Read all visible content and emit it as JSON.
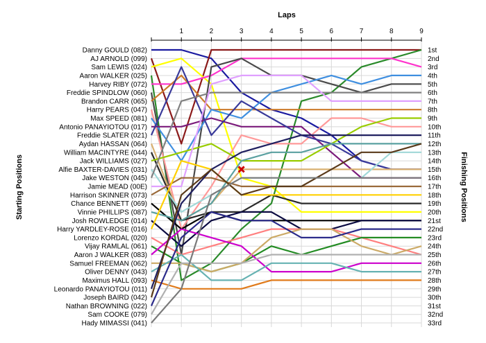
{
  "chart_data": {
    "type": "line",
    "title": "",
    "xlabel": "Laps",
    "ylabel_left": "Starting Positions",
    "ylabel_right": "Finishing Positions",
    "x": [
      0,
      1,
      2,
      3,
      4,
      5,
      6,
      7,
      8,
      9
    ],
    "x_tick_labels": [
      "1",
      "2",
      "3",
      "4",
      "5",
      "6",
      "7",
      "8",
      "9"
    ],
    "ylim": [
      1,
      33
    ],
    "grid": true,
    "starting_labels": [
      "Danny GOULD (082)",
      "AJ ARNOLD (099)",
      "Sam LEWIS (024)",
      "Aaron WALKER (025)",
      "Harvey RIBY (072)",
      "Freddie SPINDLOW (060)",
      "Brandon CARR (065)",
      "Harry PEARS (047)",
      "Max SPEED (081)",
      "Antonio PANAYIOTOU (017)",
      "Freddie SLATER (021)",
      "Aydan HASSAN (064)",
      "William MACINTYRE (044)",
      "Jack WILLIAMS (027)",
      "Alfie BAXTER-DAVIES (031)",
      "Jake WESTON (045)",
      "Jamie MEAD (00E)",
      "Harrison SKINNER (073)",
      "Chance BENNETT (069)",
      "Vinnie PHILLIPS (087)",
      "Josh ROWLEDGE (014)",
      "Harry YARDLEY-ROSE (016)",
      "Lorenzo KORDAL (020)",
      "Vijay RAMLAL (061)",
      "Aaron J WALKER (083)",
      "Samuel FREEMAN (062)",
      "Oliver DENNY (043)",
      "Maximus HALL (093)",
      "Leonardo PANAYIOTOU (011)",
      "Joseph BAIRD (042)",
      "Nathan BROWNING (022)",
      "Sam COOKE (079)",
      "Hady MIMASSI (041)"
    ],
    "finishing_labels": [
      "1st",
      "2nd",
      "3rd",
      "4th",
      "5th",
      "6th",
      "7th",
      "8th",
      "9th",
      "10th",
      "11th",
      "12th",
      "13th",
      "14th",
      "15th",
      "16th",
      "17th",
      "18th",
      "19th",
      "20th",
      "21st",
      "22nd",
      "23rd",
      "24th",
      "25th",
      "26th",
      "27th",
      "28th",
      "29th",
      "30th",
      "31st",
      "32nd",
      "33rd"
    ],
    "series": [
      {
        "color": "#1a1aa0",
        "values": [
          1,
          1,
          2,
          6,
          8,
          9,
          11,
          14,
          15,
          15
        ]
      },
      {
        "color": "#8b1a1a",
        "values": [
          2,
          12,
          1,
          1,
          1,
          1,
          1,
          1,
          1,
          1
        ]
      },
      {
        "color": "#ffff00",
        "values": [
          3,
          2,
          5,
          16,
          17,
          20,
          20,
          20,
          20,
          20
        ]
      },
      {
        "color": "#2a8a2a",
        "values": [
          4,
          28,
          26,
          22,
          19,
          7,
          6,
          3,
          2,
          1
        ]
      },
      {
        "color": "#ff33cc",
        "values": [
          5,
          5,
          4,
          2,
          2,
          2,
          2,
          2,
          2,
          3
        ]
      },
      {
        "color": "#4a4a4a",
        "values": [
          6,
          25,
          3,
          2,
          4,
          4,
          5,
          6,
          5,
          5
        ]
      },
      {
        "color": "#cc7a2a",
        "values": [
          7,
          4,
          8,
          8,
          8,
          8,
          8,
          8,
          8,
          8
        ]
      },
      {
        "color": "#ff9999",
        "values": [
          8,
          22,
          17,
          11,
          12,
          12,
          9,
          9,
          10,
          10
        ]
      },
      {
        "color": "#3f8fe0",
        "values": [
          9,
          14,
          8,
          9,
          6,
          5,
          4,
          5,
          4,
          4
        ]
      },
      {
        "color": "#7a1a7a",
        "values": [
          10,
          10,
          9,
          10,
          10,
          10,
          13,
          16,
          16,
          16
        ]
      },
      {
        "color": "#3a3a9a",
        "values": [
          11,
          3,
          11,
          7,
          9,
          11,
          12,
          14,
          15,
          15
        ]
      },
      {
        "color": "#d9b070",
        "values": [
          12,
          21,
          19,
          15,
          15,
          15,
          15,
          15,
          15,
          15
        ]
      },
      {
        "color": "#2a2a2a",
        "values": [
          13,
          21,
          20,
          20,
          18,
          19,
          19,
          19,
          19,
          19
        ]
      },
      {
        "color": "#99cc00",
        "values": [
          14,
          13,
          12,
          14,
          14,
          14,
          12,
          10,
          9,
          9
        ]
      },
      {
        "color": "#a0d8d8",
        "values": [
          15,
          20,
          18,
          16,
          16,
          16,
          16,
          16,
          13,
          13
        ]
      },
      {
        "color": "#808080",
        "values": [
          16,
          7,
          6,
          6,
          6,
          6,
          6,
          6,
          6,
          6
        ]
      },
      {
        "color": "#e0a0ff",
        "values": [
          17,
          17,
          5,
          4,
          4,
          4,
          7,
          7,
          7,
          7
        ]
      },
      {
        "color": "#9a6a3a",
        "values": [
          18,
          16,
          16,
          17,
          17,
          17,
          17,
          17,
          17,
          17
        ]
      },
      {
        "color": "#000000",
        "values": [
          19,
          22,
          20,
          21,
          21,
          21,
          21,
          21,
          21,
          21
        ]
      },
      {
        "color": "#5aa0a0",
        "values": [
          20,
          21,
          19,
          14,
          13,
          13,
          12,
          12,
          12,
          12
        ]
      },
      {
        "color": "#0a0a40",
        "values": [
          21,
          24,
          21,
          20,
          20,
          22,
          22,
          21,
          21,
          21
        ]
      },
      {
        "color": "#ffd000",
        "values": [
          22,
          14,
          15,
          18,
          18,
          18,
          18,
          18,
          18,
          18
        ]
      },
      {
        "color": "#ff7f7f",
        "values": [
          23,
          25,
          24,
          23,
          22,
          22,
          22,
          23,
          24,
          25
        ]
      },
      {
        "color": "#228b22",
        "values": [
          24,
          26,
          27,
          26,
          24,
          25,
          24,
          23,
          23,
          23
        ]
      },
      {
        "color": "#cc00cc",
        "values": [
          25,
          22,
          23,
          24,
          27,
          27,
          27,
          26,
          26,
          26
        ]
      },
      {
        "color": "#ccaa66",
        "values": [
          26,
          26,
          27,
          26,
          23,
          22,
          22,
          24,
          25,
          24
        ]
      },
      {
        "color": "#66b2b2",
        "values": [
          27,
          25,
          28,
          28,
          26,
          26,
          26,
          27,
          27,
          27
        ]
      },
      {
        "color": "#e07a1a",
        "values": [
          28,
          29,
          29,
          29,
          28,
          28,
          28,
          28,
          28,
          28
        ]
      },
      {
        "color": "#1f1f5f",
        "values": [
          29,
          19,
          15,
          13,
          12,
          11,
          11,
          11,
          11,
          11
        ]
      },
      {
        "color": "#5a3a1a",
        "values": [
          30,
          18,
          15,
          18,
          17,
          17,
          15,
          13,
          13,
          12
        ]
      },
      {
        "color": "#2a2a8a",
        "values": [
          31,
          23,
          20,
          21,
          21,
          23,
          23,
          22,
          22,
          22
        ]
      },
      {
        "color": "#b0b0b0",
        "values": [
          32,
          26,
          26,
          26,
          25,
          25,
          25,
          25,
          25,
          25
        ]
      },
      {
        "color": "#7a7a7a",
        "values": [
          33,
          29,
          18,
          16,
          16,
          16,
          16,
          16,
          16,
          16
        ]
      }
    ],
    "markers": [
      {
        "type": "x",
        "lap": 3,
        "position": 15,
        "color": "#cc0000"
      }
    ]
  }
}
